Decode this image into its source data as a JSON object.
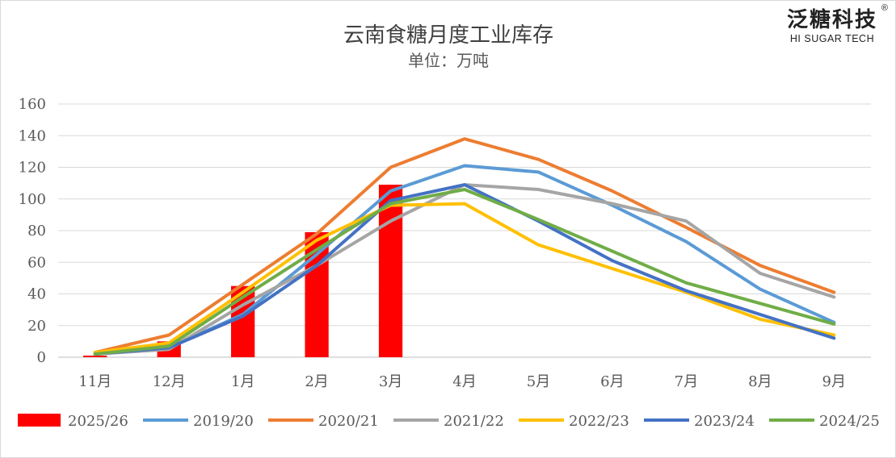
{
  "brand": {
    "name": "泛糖科技",
    "sub": "HI SUGAR TECH",
    "reg": "®"
  },
  "chart_data": {
    "type": "bar+line",
    "title": "云南食糖月度工业库存",
    "subtitle": "单位：万吨",
    "categories": [
      "11月",
      "12月",
      "1月",
      "2月",
      "3月",
      "4月",
      "5月",
      "6月",
      "7月",
      "8月",
      "9月"
    ],
    "yticks": [
      0,
      20,
      40,
      60,
      80,
      100,
      120,
      140,
      160
    ],
    "ylim": [
      0,
      160
    ],
    "grid": true,
    "legend_position": "bottom",
    "bar_series": {
      "name": "2025/26",
      "color": "#FF0000",
      "values": [
        1,
        10,
        45,
        79,
        109,
        null,
        null,
        null,
        null,
        null,
        null
      ]
    },
    "line_series": [
      {
        "name": "2019/20",
        "color": "#5B9BD5",
        "values": [
          2,
          6,
          27,
          65,
          105,
          121,
          117,
          96,
          73,
          43,
          22
        ]
      },
      {
        "name": "2020/21",
        "color": "#ED7D31",
        "values": [
          3,
          14,
          46,
          78,
          120,
          138,
          125,
          105,
          82,
          58,
          41
        ]
      },
      {
        "name": "2021/22",
        "color": "#A5A5A5",
        "values": [
          2,
          5,
          33,
          58,
          86,
          109,
          106,
          97,
          86,
          53,
          38
        ]
      },
      {
        "name": "2022/23",
        "color": "#FFC000",
        "values": [
          3,
          9,
          41,
          74,
          96,
          97,
          71,
          56,
          41,
          24,
          14
        ]
      },
      {
        "name": "2023/24",
        "color": "#4472C4",
        "values": [
          2,
          6,
          26,
          58,
          99,
          109,
          86,
          61,
          42,
          27,
          12
        ]
      },
      {
        "name": "2024/25",
        "color": "#70AD47",
        "values": [
          2,
          7,
          38,
          68,
          97,
          106,
          87,
          67,
          47,
          34,
          21
        ]
      }
    ]
  }
}
